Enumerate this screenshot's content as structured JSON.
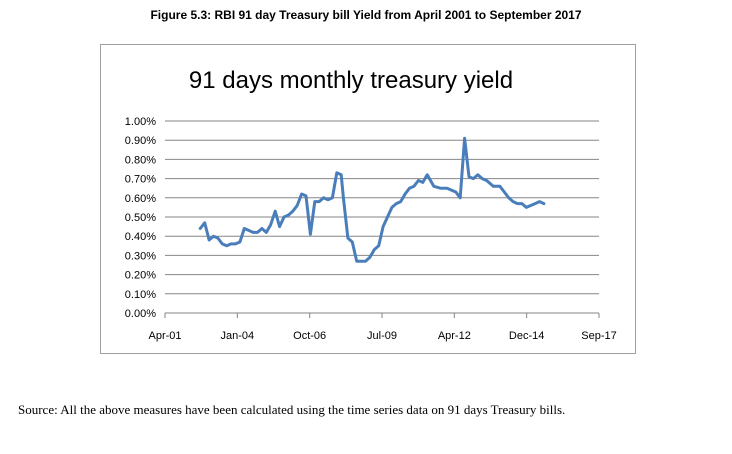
{
  "figure_title": "Figure 5.3: RBI 91  day Treasury bill Yield from April 2001  to September 2017",
  "source_note": "Source: All the above measures have been calculated using the time series data on 91 days Treasury bills.",
  "chart_data": {
    "type": "line",
    "title": "91 days monthly treasury yield",
    "xlabel": "",
    "ylabel": "",
    "x_ticks": [
      "Apr-01",
      "Jan-04",
      "Oct-06",
      "Jul-09",
      "Apr-12",
      "Dec-14",
      "Sep-17"
    ],
    "x_range": [
      "2001-04",
      "2017-09"
    ],
    "y_ticks": [
      "0.00%",
      "0.10%",
      "0.20%",
      "0.30%",
      "0.40%",
      "0.50%",
      "0.60%",
      "0.70%",
      "0.80%",
      "0.90%",
      "1.00%"
    ],
    "ylim": [
      0,
      1.0
    ],
    "y_unit": "%",
    "grid": "horizontal",
    "legend": "none",
    "line_color": "#4a7ebb",
    "series": [
      {
        "x": [
          "2002-08",
          "2002-10",
          "2002-12",
          "2003-02",
          "2003-04",
          "2003-06",
          "2003-08",
          "2003-10",
          "2003-12",
          "2004-02",
          "2004-04",
          "2004-06",
          "2004-08",
          "2004-10",
          "2004-12",
          "2005-02",
          "2005-04",
          "2005-06",
          "2005-08",
          "2005-10",
          "2005-12",
          "2006-02",
          "2006-04",
          "2006-06",
          "2006-08",
          "2006-10",
          "2006-12",
          "2007-02",
          "2007-04",
          "2007-06",
          "2007-08",
          "2007-10",
          "2007-12",
          "2008-01",
          "2008-03",
          "2008-05",
          "2008-07",
          "2008-09",
          "2008-11",
          "2009-01",
          "2009-03",
          "2009-05",
          "2009-07",
          "2009-09",
          "2009-11",
          "2010-01",
          "2010-03",
          "2010-05",
          "2010-07",
          "2010-09",
          "2010-11",
          "2011-01",
          "2011-03",
          "2011-06",
          "2011-09",
          "2011-12",
          "2012-02",
          "2012-04",
          "2012-06",
          "2012-08",
          "2012-10",
          "2012-12",
          "2013-02",
          "2013-04",
          "2013-06",
          "2013-07",
          "2013-08",
          "2013-09",
          "2013-10",
          "2013-12",
          "2014-02",
          "2014-04",
          "2014-06",
          "2014-08",
          "2014-10",
          "2014-12",
          "2015-02",
          "2015-04",
          "2015-06",
          "2015-08"
        ],
        "values": [
          0.44,
          0.47,
          0.38,
          0.4,
          0.39,
          0.36,
          0.35,
          0.36,
          0.36,
          0.37,
          0.44,
          0.43,
          0.42,
          0.42,
          0.44,
          0.42,
          0.46,
          0.53,
          0.45,
          0.5,
          0.51,
          0.53,
          0.56,
          0.62,
          0.61,
          0.41,
          0.58,
          0.58,
          0.6,
          0.59,
          0.6,
          0.73,
          0.72,
          0.6,
          0.39,
          0.37,
          0.27,
          0.27,
          0.27,
          0.29,
          0.33,
          0.35,
          0.45,
          0.5,
          0.55,
          0.57,
          0.58,
          0.62,
          0.65,
          0.66,
          0.69,
          0.68,
          0.72,
          0.66,
          0.65,
          0.65,
          0.64,
          0.63,
          0.6,
          0.91,
          0.71,
          0.7,
          0.72,
          0.7,
          0.69,
          0.68,
          0.67,
          0.66,
          0.66,
          0.66,
          0.63,
          0.6,
          0.58,
          0.57,
          0.57,
          0.55,
          0.56,
          0.57,
          0.58,
          0.57
        ]
      }
    ]
  }
}
